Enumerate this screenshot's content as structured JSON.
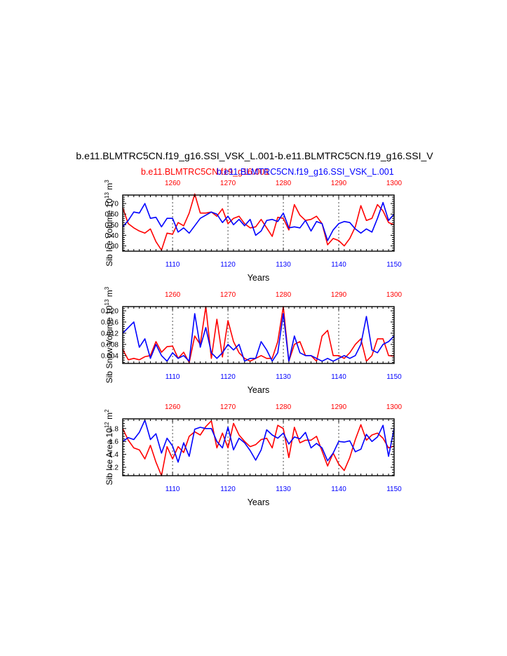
{
  "header": {
    "title": "b.e11.BLMTRC5CN.f19_g16.SSI_VSK_L.001-b.e11.BLMTRC5CN.f19_g16.SSI_V",
    "case_red": "b.e11.BLMTRC5CN.f19_g16.001",
    "case_blue": "b.e11.BLMTRC5CN.f19_g16.SSI_VSK_L.001",
    "label_text": "b.e11.BLMTRC5CN.f19_g16.SSI_VSK_L.001"
  },
  "colors": {
    "red": "#ff0000",
    "blue": "#0000ff",
    "axis": "#000000"
  },
  "chart_data": [
    {
      "type": "line",
      "ylabel_main": "Sib Ice Volume 10",
      "ylabel_exp": "13",
      "ylabel_unit": " m",
      "ylabel_unit_exp": "3",
      "xlabel": "Years",
      "xlim_bottom": [
        1101,
        1150
      ],
      "xlim_top": [
        1251,
        1300
      ],
      "ylim": [
        0.25,
        0.78
      ],
      "yticks": [
        0.3,
        0.4,
        0.5,
        0.6,
        0.7
      ],
      "ytick_labels": [
        "0.30",
        "0.40",
        "0.50",
        "0.60",
        "0.70"
      ],
      "xticks_bottom": [
        1110,
        1120,
        1130,
        1140,
        1150
      ],
      "xticks_top": [
        1260,
        1270,
        1280,
        1290,
        1300
      ],
      "series": [
        {
          "color": "red",
          "x": [
            1101,
            1102,
            1103,
            1104,
            1105,
            1106,
            1107,
            1108,
            1109,
            1110,
            1111,
            1112,
            1113,
            1114,
            1115,
            1116,
            1117,
            1118,
            1119,
            1120,
            1121,
            1122,
            1123,
            1124,
            1125,
            1126,
            1127,
            1128,
            1129,
            1130,
            1131,
            1132,
            1133,
            1134,
            1135,
            1136,
            1137,
            1138,
            1139,
            1140,
            1141,
            1142,
            1143,
            1144,
            1145,
            1146,
            1147,
            1148,
            1149,
            1150
          ],
          "values": [
            0.66,
            0.51,
            0.47,
            0.44,
            0.42,
            0.46,
            0.34,
            0.26,
            0.42,
            0.41,
            0.52,
            0.49,
            0.61,
            0.79,
            0.61,
            0.61,
            0.62,
            0.58,
            0.65,
            0.51,
            0.56,
            0.58,
            0.51,
            0.47,
            0.48,
            0.55,
            0.47,
            0.39,
            0.57,
            0.56,
            0.45,
            0.69,
            0.59,
            0.54,
            0.55,
            0.58,
            0.51,
            0.31,
            0.37,
            0.35,
            0.3,
            0.37,
            0.48,
            0.68,
            0.54,
            0.56,
            0.69,
            0.63,
            0.52,
            0.5
          ]
        },
        {
          "color": "blue",
          "x": [
            1101,
            1102,
            1103,
            1104,
            1105,
            1106,
            1107,
            1108,
            1109,
            1110,
            1111,
            1112,
            1113,
            1114,
            1115,
            1116,
            1117,
            1118,
            1119,
            1120,
            1121,
            1122,
            1123,
            1124,
            1125,
            1126,
            1127,
            1128,
            1129,
            1130,
            1131,
            1132,
            1133,
            1134,
            1135,
            1136,
            1137,
            1138,
            1139,
            1140,
            1141,
            1142,
            1143,
            1144,
            1145,
            1146,
            1147,
            1148,
            1149,
            1150
          ],
          "values": [
            0.48,
            0.54,
            0.62,
            0.61,
            0.7,
            0.56,
            0.57,
            0.48,
            0.56,
            0.56,
            0.43,
            0.47,
            0.42,
            0.49,
            0.56,
            0.59,
            0.62,
            0.6,
            0.52,
            0.58,
            0.5,
            0.55,
            0.49,
            0.55,
            0.4,
            0.44,
            0.54,
            0.55,
            0.53,
            0.61,
            0.47,
            0.48,
            0.47,
            0.54,
            0.44,
            0.53,
            0.51,
            0.35,
            0.45,
            0.51,
            0.53,
            0.52,
            0.46,
            0.42,
            0.46,
            0.43,
            0.56,
            0.71,
            0.54,
            0.6
          ]
        }
      ]
    },
    {
      "type": "line",
      "ylabel_main": "Sib Snow Volume 10",
      "ylabel_exp": "13",
      "ylabel_unit": " m",
      "ylabel_unit_exp": "3",
      "xlabel": "Years",
      "xlim_bottom": [
        1101,
        1150
      ],
      "xlim_top": [
        1251,
        1300
      ],
      "ylim": [
        0.0012,
        0.0215
      ],
      "yticks": [
        0.004,
        0.008,
        0.012,
        0.016,
        0.02
      ],
      "ytick_labels": [
        "0.004",
        "0.008",
        "0.012",
        "0.016",
        "0.020"
      ],
      "xticks_bottom": [
        1110,
        1120,
        1130,
        1140,
        1150
      ],
      "xticks_top": [
        1260,
        1270,
        1280,
        1290,
        1300
      ],
      "series": [
        {
          "color": "red",
          "x": [
            1101,
            1102,
            1103,
            1104,
            1105,
            1106,
            1107,
            1108,
            1109,
            1110,
            1111,
            1112,
            1113,
            1114,
            1115,
            1116,
            1117,
            1118,
            1119,
            1120,
            1121,
            1122,
            1123,
            1124,
            1125,
            1126,
            1127,
            1128,
            1129,
            1130,
            1131,
            1132,
            1133,
            1134,
            1135,
            1136,
            1137,
            1138,
            1139,
            1140,
            1141,
            1142,
            1143,
            1144,
            1145,
            1146,
            1147,
            1148,
            1149,
            1150
          ],
          "values": [
            0.0062,
            0.0025,
            0.003,
            0.0025,
            0.0036,
            0.004,
            0.009,
            0.0052,
            0.0072,
            0.0074,
            0.003,
            0.0052,
            0.0015,
            0.011,
            0.008,
            0.0215,
            0.003,
            0.017,
            0.0035,
            0.0165,
            0.009,
            0.005,
            0.003,
            0.002,
            0.003,
            0.004,
            0.003,
            0.003,
            0.009,
            0.0215,
            0.002,
            0.008,
            0.009,
            0.004,
            0.004,
            0.002,
            0.011,
            0.013,
            0.004,
            0.004,
            0.003,
            0.005,
            0.008,
            0.01,
            0.002,
            0.004,
            0.01,
            0.01,
            0.004,
            0.0038
          ]
        },
        {
          "color": "blue",
          "x": [
            1101,
            1102,
            1103,
            1104,
            1105,
            1106,
            1107,
            1108,
            1109,
            1110,
            1111,
            1112,
            1113,
            1114,
            1115,
            1116,
            1117,
            1118,
            1119,
            1120,
            1121,
            1122,
            1123,
            1124,
            1125,
            1126,
            1127,
            1128,
            1129,
            1130,
            1131,
            1132,
            1133,
            1134,
            1135,
            1136,
            1137,
            1138,
            1139,
            1140,
            1141,
            1142,
            1143,
            1144,
            1145,
            1146,
            1147,
            1148,
            1149,
            1150
          ],
          "values": [
            0.012,
            0.014,
            0.016,
            0.007,
            0.01,
            0.003,
            0.008,
            0.004,
            0.002,
            0.005,
            0.003,
            0.004,
            0.002,
            0.019,
            0.007,
            0.014,
            0.005,
            0.003,
            0.005,
            0.008,
            0.006,
            0.008,
            0.002,
            0.003,
            0.003,
            0.009,
            0.006,
            0.002,
            0.005,
            0.019,
            0.002,
            0.011,
            0.005,
            0.004,
            0.004,
            0.003,
            0.002,
            0.003,
            0.002,
            0.003,
            0.004,
            0.003,
            0.004,
            0.008,
            0.018,
            0.006,
            0.005,
            0.008,
            0.009,
            0.011
          ]
        }
      ]
    },
    {
      "type": "line",
      "ylabel_main": "Sib Ice Area 10",
      "ylabel_exp": "12",
      "ylabel_unit": " m",
      "ylabel_unit_exp": "2",
      "xlabel": "Years",
      "xlim_bottom": [
        1101,
        1150
      ],
      "xlim_top": [
        1251,
        1300
      ],
      "ylim": [
        1.07,
        1.95
      ],
      "yticks": [
        1.2,
        1.4,
        1.6,
        1.8
      ],
      "ytick_labels": [
        "1.2",
        "1.4",
        "1.6",
        "1.8"
      ],
      "xticks_bottom": [
        1110,
        1120,
        1130,
        1140,
        1150
      ],
      "xticks_top": [
        1260,
        1270,
        1280,
        1290,
        1300
      ],
      "series": [
        {
          "color": "red",
          "x": [
            1101,
            1102,
            1103,
            1104,
            1105,
            1106,
            1107,
            1108,
            1109,
            1110,
            1111,
            1112,
            1113,
            1114,
            1115,
            1116,
            1117,
            1118,
            1119,
            1120,
            1121,
            1122,
            1123,
            1124,
            1125,
            1126,
            1127,
            1128,
            1129,
            1130,
            1131,
            1132,
            1133,
            1134,
            1135,
            1136,
            1137,
            1138,
            1139,
            1140,
            1141,
            1142,
            1143,
            1144,
            1145,
            1146,
            1147,
            1148,
            1149,
            1150
          ],
          "values": [
            1.8,
            1.62,
            1.5,
            1.47,
            1.33,
            1.54,
            1.28,
            1.07,
            1.52,
            1.33,
            1.52,
            1.43,
            1.68,
            1.75,
            1.7,
            1.83,
            1.92,
            1.5,
            1.73,
            1.5,
            1.88,
            1.7,
            1.6,
            1.52,
            1.55,
            1.63,
            1.65,
            1.5,
            1.85,
            1.8,
            1.35,
            1.82,
            1.58,
            1.62,
            1.62,
            1.68,
            1.45,
            1.22,
            1.42,
            1.25,
            1.15,
            1.35,
            1.63,
            1.86,
            1.62,
            1.7,
            1.73,
            1.65,
            1.5,
            1.53
          ]
        },
        {
          "color": "blue",
          "x": [
            1101,
            1102,
            1103,
            1104,
            1105,
            1106,
            1107,
            1108,
            1109,
            1110,
            1111,
            1112,
            1113,
            1114,
            1115,
            1116,
            1117,
            1118,
            1119,
            1120,
            1121,
            1122,
            1123,
            1124,
            1125,
            1126,
            1127,
            1128,
            1129,
            1130,
            1131,
            1132,
            1133,
            1134,
            1135,
            1136,
            1137,
            1138,
            1139,
            1140,
            1141,
            1142,
            1143,
            1144,
            1145,
            1146,
            1147,
            1148,
            1149,
            1150
          ],
          "values": [
            1.6,
            1.66,
            1.63,
            1.74,
            1.93,
            1.63,
            1.72,
            1.42,
            1.65,
            1.53,
            1.28,
            1.58,
            1.37,
            1.79,
            1.82,
            1.8,
            1.8,
            1.6,
            1.5,
            1.82,
            1.47,
            1.65,
            1.58,
            1.46,
            1.31,
            1.47,
            1.78,
            1.7,
            1.65,
            1.73,
            1.56,
            1.67,
            1.64,
            1.74,
            1.5,
            1.57,
            1.5,
            1.3,
            1.42,
            1.6,
            1.59,
            1.61,
            1.44,
            1.48,
            1.71,
            1.6,
            1.67,
            1.85,
            1.37,
            1.8
          ]
        }
      ]
    }
  ]
}
